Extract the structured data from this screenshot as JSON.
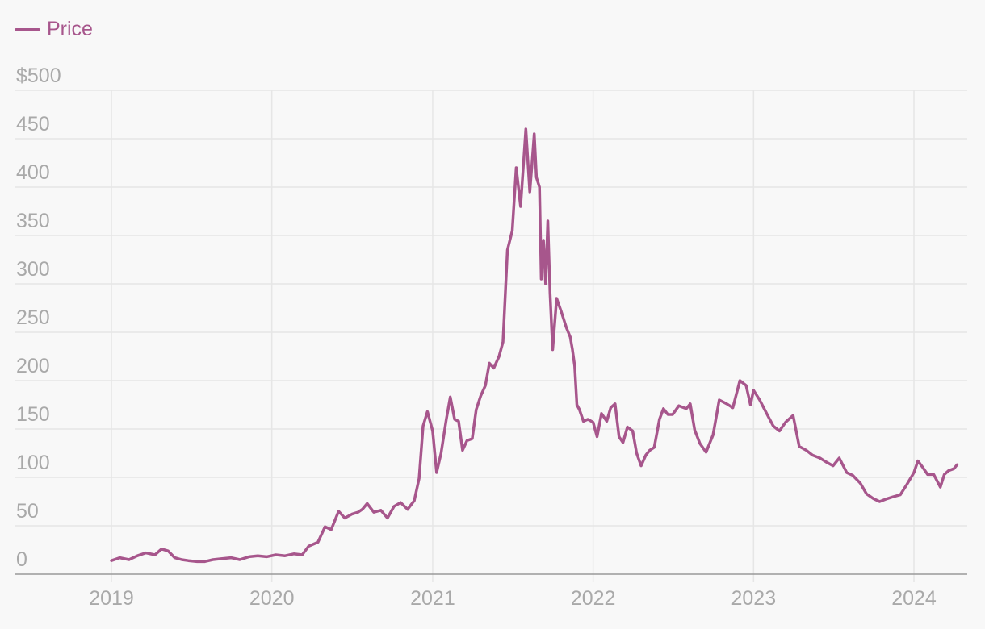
{
  "legend": {
    "label": "Price",
    "color": "#a7568c"
  },
  "colors": {
    "grid": "#e6e6e6",
    "axis": "#999999",
    "tick_text": "#a9a9a9",
    "background": "#f8f8f8"
  },
  "chart_data": {
    "type": "line",
    "title": "",
    "xlabel": "",
    "ylabel": "",
    "x_range": [
      "2019-01-01",
      "2024-04-15"
    ],
    "ylim": [
      0,
      500
    ],
    "y_ticks": [
      0,
      50,
      100,
      150,
      200,
      250,
      300,
      350,
      400,
      450,
      500
    ],
    "y_tick_labels": [
      "0",
      "50",
      "100",
      "150",
      "200",
      "250",
      "300",
      "350",
      "400",
      "450",
      "$500"
    ],
    "x_ticks": [
      "2019-01-01",
      "2020-01-01",
      "2021-01-01",
      "2022-01-01",
      "2023-01-01",
      "2024-01-01"
    ],
    "x_tick_labels": [
      "2019",
      "2020",
      "2021",
      "2022",
      "2023",
      "2024"
    ],
    "grid": true,
    "legend_position": "top-left",
    "series": [
      {
        "name": "Price",
        "color": "#a7568c",
        "x": [
          "2019-01-01",
          "2019-01-20",
          "2019-02-10",
          "2019-03-01",
          "2019-03-20",
          "2019-04-10",
          "2019-04-25",
          "2019-05-10",
          "2019-05-25",
          "2019-06-10",
          "2019-06-25",
          "2019-07-15",
          "2019-08-01",
          "2019-08-20",
          "2019-09-10",
          "2019-09-30",
          "2019-10-20",
          "2019-11-10",
          "2019-11-30",
          "2019-12-20",
          "2020-01-10",
          "2020-01-31",
          "2020-02-20",
          "2020-03-10",
          "2020-03-25",
          "2020-04-15",
          "2020-05-01",
          "2020-05-15",
          "2020-06-01",
          "2020-06-15",
          "2020-07-01",
          "2020-07-15",
          "2020-07-25",
          "2020-08-05",
          "2020-08-20",
          "2020-09-05",
          "2020-09-20",
          "2020-10-05",
          "2020-10-20",
          "2020-11-05",
          "2020-11-20",
          "2020-12-01",
          "2020-12-10",
          "2020-12-20",
          "2021-01-01",
          "2021-01-10",
          "2021-01-20",
          "2021-02-01",
          "2021-02-10",
          "2021-02-20",
          "2021-03-01",
          "2021-03-10",
          "2021-03-20",
          "2021-04-01",
          "2021-04-10",
          "2021-04-20",
          "2021-05-01",
          "2021-05-10",
          "2021-05-20",
          "2021-06-01",
          "2021-06-10",
          "2021-06-20",
          "2021-07-01",
          "2021-07-10",
          "2021-07-20",
          "2021-08-01",
          "2021-08-10",
          "2021-08-15",
          "2021-08-20",
          "2021-08-25",
          "2021-09-01",
          "2021-09-05",
          "2021-09-10",
          "2021-09-15",
          "2021-09-20",
          "2021-09-25",
          "2021-10-01",
          "2021-10-10",
          "2021-10-20",
          "2021-11-01",
          "2021-11-10",
          "2021-11-15",
          "2021-11-20",
          "2021-11-25",
          "2021-12-01",
          "2021-12-10",
          "2021-12-20",
          "2022-01-01",
          "2022-01-10",
          "2022-01-20",
          "2022-02-01",
          "2022-02-10",
          "2022-02-20",
          "2022-03-01",
          "2022-03-10",
          "2022-03-20",
          "2022-04-01",
          "2022-04-10",
          "2022-04-20",
          "2022-05-01",
          "2022-05-10",
          "2022-05-20",
          "2022-06-01",
          "2022-06-10",
          "2022-06-20",
          "2022-07-01",
          "2022-07-15",
          "2022-08-01",
          "2022-08-10",
          "2022-08-20",
          "2022-09-01",
          "2022-09-15",
          "2022-10-01",
          "2022-10-15",
          "2022-11-01",
          "2022-11-15",
          "2022-12-01",
          "2022-12-15",
          "2022-12-25",
          "2023-01-01",
          "2023-01-15",
          "2023-02-01",
          "2023-02-15",
          "2023-03-01",
          "2023-03-15",
          "2023-04-01",
          "2023-04-15",
          "2023-05-01",
          "2023-05-15",
          "2023-06-01",
          "2023-06-15",
          "2023-07-01",
          "2023-07-15",
          "2023-08-01",
          "2023-08-15",
          "2023-09-01",
          "2023-09-15",
          "2023-10-01",
          "2023-10-15",
          "2023-11-01",
          "2023-11-15",
          "2023-12-01",
          "2023-12-15",
          "2024-01-01",
          "2024-01-10",
          "2024-01-20",
          "2024-02-01",
          "2024-02-15",
          "2024-03-01",
          "2024-03-10",
          "2024-03-20",
          "2024-04-01",
          "2024-04-08"
        ],
        "values": [
          14,
          17,
          15,
          19,
          22,
          20,
          26,
          24,
          17,
          15,
          14,
          13,
          13,
          15,
          16,
          17,
          15,
          18,
          19,
          18,
          20,
          19,
          21,
          20,
          29,
          33,
          49,
          46,
          65,
          58,
          62,
          64,
          67,
          73,
          64,
          66,
          58,
          70,
          74,
          67,
          76,
          99,
          153,
          168,
          148,
          105,
          125,
          160,
          183,
          160,
          158,
          128,
          138,
          140,
          170,
          184,
          195,
          218,
          213,
          225,
          240,
          335,
          355,
          420,
          380,
          460,
          395,
          425,
          455,
          410,
          400,
          305,
          345,
          300,
          365,
          290,
          232,
          285,
          272,
          255,
          245,
          232,
          215,
          175,
          170,
          158,
          160,
          157,
          142,
          166,
          158,
          172,
          176,
          142,
          136,
          152,
          148,
          125,
          112,
          123,
          128,
          131,
          160,
          171,
          165,
          165,
          174,
          171,
          176,
          149,
          135,
          126,
          144,
          180,
          176,
          172,
          200,
          195,
          175,
          190,
          180,
          165,
          153,
          148,
          157,
          164,
          132,
          128,
          123,
          120,
          116,
          112,
          120,
          105,
          102,
          94,
          83,
          78,
          75,
          78,
          80,
          82,
          92,
          105,
          117,
          111,
          103,
          103,
          90,
          103,
          107,
          109,
          113
        ]
      }
    ]
  }
}
